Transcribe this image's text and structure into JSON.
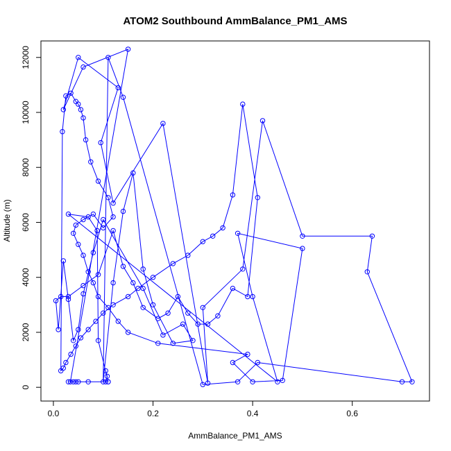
{
  "chart_data": {
    "type": "line",
    "title": "ATOM2 Southbound AmmBalance_PM1_AMS",
    "xlabel": "AmmBalance_PM1_AMS",
    "ylabel": "Altitude (m)",
    "xlim": [
      -0.025,
      0.755
    ],
    "ylim": [
      -500,
      12600
    ],
    "xticks": [
      0.0,
      0.2,
      0.4,
      0.6
    ],
    "xtick_labels": [
      "0.0",
      "0.2",
      "0.4",
      "0.6"
    ],
    "yticks": [
      0,
      2000,
      4000,
      6000,
      8000,
      10000,
      12000
    ],
    "ytick_labels": [
      "0",
      "2000",
      "4000",
      "6000",
      "8000",
      "10000",
      "12000"
    ],
    "grid": false,
    "legend": "none",
    "marker": "open-circle",
    "color": "#0000ff",
    "series": [
      {
        "x": [
          0.034,
          0.15,
          0.06,
          0.02,
          0.05,
          0.13,
          0.095,
          0.12,
          0.22,
          0.31,
          0.3,
          0.38,
          0.42,
          0.5,
          0.64,
          0.63,
          0.72,
          0.7,
          0.41,
          0.37,
          0.3,
          0.14,
          0.11,
          0.1,
          0.12,
          0.14,
          0.16,
          0.18,
          0.2,
          0.24,
          0.28,
          0.26,
          0.22,
          0.18,
          0.1,
          0.08,
          0.06,
          0.05,
          0.04,
          0.03,
          0.02,
          0.01,
          0.005,
          0.015,
          0.03,
          0.06,
          0.09,
          0.12,
          0.14,
          0.16,
          0.18,
          0.21,
          0.23,
          0.25,
          0.27,
          0.29,
          0.31,
          0.33,
          0.36,
          0.39,
          0.41,
          0.38,
          0.36,
          0.34,
          0.32,
          0.3,
          0.27,
          0.24,
          0.2,
          0.17,
          0.15,
          0.12,
          0.1,
          0.085,
          0.07,
          0.055,
          0.045,
          0.035,
          0.025,
          0.02,
          0.015,
          0.018,
          0.025,
          0.035,
          0.045,
          0.05,
          0.055,
          0.06,
          0.065,
          0.075,
          0.09,
          0.11,
          0.12,
          0.1,
          0.08,
          0.06,
          0.045,
          0.04,
          0.05,
          0.06,
          0.07,
          0.08,
          0.09,
          0.11,
          0.13,
          0.15,
          0.21,
          0.39,
          0.36,
          0.4,
          0.46,
          0.5,
          0.37,
          0.4,
          0.45,
          0.03,
          0.07,
          0.088,
          0.09,
          0.11,
          0.105,
          0.108,
          0.105,
          0.11,
          0.07,
          0.05,
          0.045,
          0.04,
          0.03
        ],
        "y": [
          200,
          12300,
          11650,
          10100,
          12000,
          10900,
          8900,
          6700,
          9600,
          150,
          2900,
          4300,
          9700,
          5500,
          5500,
          4200,
          200,
          200,
          900,
          200,
          100,
          10550,
          12000,
          200,
          3800,
          6400,
          7800,
          4300,
          3000,
          1600,
          1700,
          2300,
          1900,
          3600,
          6100,
          4900,
          3400,
          2100,
          1700,
          3200,
          4600,
          2100,
          3150,
          3300,
          3300,
          3700,
          4100,
          5700,
          4400,
          3800,
          2900,
          2500,
          2700,
          3300,
          2700,
          2300,
          2300,
          2600,
          3600,
          3300,
          6900,
          10300,
          7000,
          5800,
          5500,
          5300,
          4800,
          4500,
          4000,
          3600,
          3300,
          3000,
          2700,
          2400,
          2100,
          1800,
          1500,
          1200,
          900,
          700,
          600,
          9300,
          10600,
          10700,
          10400,
          10300,
          10100,
          9800,
          9000,
          8200,
          7500,
          6900,
          6200,
          5800,
          6300,
          6100,
          5900,
          5600,
          5200,
          4800,
          4200,
          3800,
          3300,
          2900,
          2400,
          2000,
          1600,
          1200,
          900,
          200,
          250,
          5050,
          5600,
          3300,
          200,
          6300,
          6200,
          5700,
          1700,
          200,
          600,
          400,
          200,
          200,
          200,
          200,
          200,
          200,
          200
        ]
      }
    ]
  }
}
